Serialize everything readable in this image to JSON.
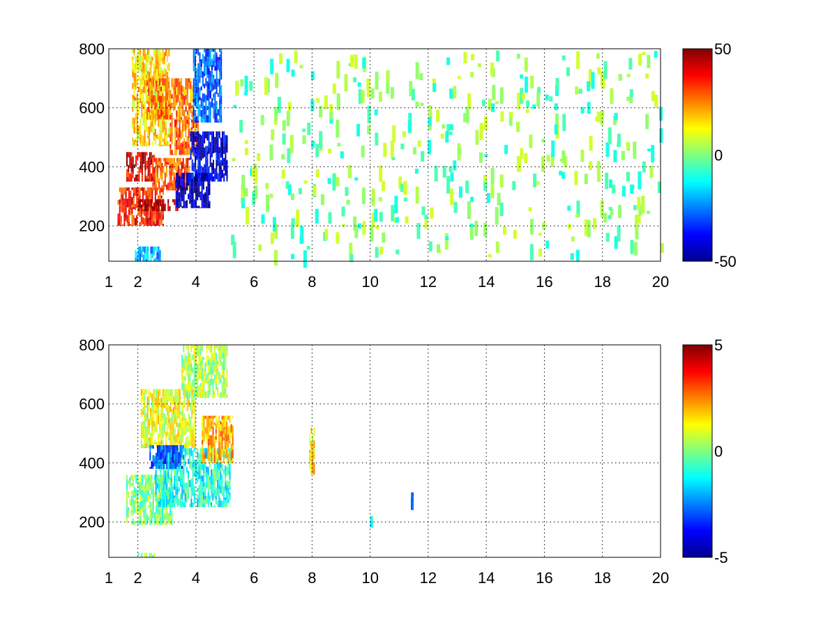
{
  "chart_data": [
    {
      "type": "heatmap",
      "title": "",
      "xlabel": "",
      "ylabel": "",
      "xlim": [
        1,
        20
      ],
      "ylim": [
        80,
        800
      ],
      "xticks": [
        1,
        2,
        4,
        6,
        8,
        10,
        12,
        14,
        16,
        18,
        20
      ],
      "xtick_labels": [
        "1",
        "2",
        "4",
        "6",
        "8",
        "10",
        "12",
        "14",
        "16",
        "18",
        "20"
      ],
      "yticks": [
        200,
        400,
        600,
        800
      ],
      "ytick_labels": [
        "200",
        "400",
        "600",
        "800"
      ],
      "grid": true,
      "colormap": "jet",
      "clim": [
        -50,
        50
      ],
      "colorbar_ticks": [
        -50,
        0,
        50
      ],
      "colorbar_tick_labels": [
        "-50",
        "0",
        "50"
      ],
      "blobs": [
        {
          "x": [
            1.3,
            2.9
          ],
          "y": [
            200,
            330
          ],
          "value": 35
        },
        {
          "x": [
            2.0,
            3.4
          ],
          "y": [
            250,
            290
          ],
          "value": 48
        },
        {
          "x": [
            2.5,
            3.8
          ],
          "y": [
            320,
            430
          ],
          "value": 30
        },
        {
          "x": [
            3.1,
            4.1
          ],
          "y": [
            440,
            560
          ],
          "value": 28
        },
        {
          "x": [
            3.3,
            4.5
          ],
          "y": [
            260,
            380
          ],
          "value": -45
        },
        {
          "x": [
            3.8,
            5.1
          ],
          "y": [
            350,
            520
          ],
          "value": -40
        },
        {
          "x": [
            3.9,
            4.9
          ],
          "y": [
            550,
            800
          ],
          "value": -28
        },
        {
          "x": [
            1.8,
            3.1
          ],
          "y": [
            470,
            800
          ],
          "value": 15
        },
        {
          "x": [
            2.3,
            3.9
          ],
          "y": [
            560,
            700
          ],
          "value": 25
        },
        {
          "x": [
            1.6,
            2.6
          ],
          "y": [
            350,
            450
          ],
          "value": 40
        },
        {
          "x": [
            1.9,
            2.8
          ],
          "y": [
            80,
            130
          ],
          "value": -20
        }
      ],
      "noise_x_range": [
        5.2,
        20
      ],
      "noise_values": [
        -10,
        2,
        5,
        -5,
        8
      ]
    },
    {
      "type": "heatmap",
      "title": "",
      "xlabel": "",
      "ylabel": "",
      "xlim": [
        1,
        20
      ],
      "ylim": [
        80,
        800
      ],
      "xticks": [
        1,
        2,
        4,
        6,
        8,
        10,
        12,
        14,
        16,
        18,
        20
      ],
      "xtick_labels": [
        "1",
        "2",
        "4",
        "6",
        "8",
        "10",
        "12",
        "14",
        "16",
        "18",
        "20"
      ],
      "yticks": [
        200,
        400,
        600,
        800
      ],
      "ytick_labels": [
        "200",
        "400",
        "600",
        "800"
      ],
      "grid": true,
      "colormap": "jet",
      "clim": [
        -5,
        5
      ],
      "colorbar_ticks": [
        -5,
        0,
        5
      ],
      "colorbar_tick_labels": [
        "-5",
        "0",
        "5"
      ],
      "blobs": [
        {
          "x": [
            1.6,
            3.2
          ],
          "y": [
            190,
            360
          ],
          "value": 0
        },
        {
          "x": [
            2.6,
            5.2
          ],
          "y": [
            250,
            450
          ],
          "value": -1
        },
        {
          "x": [
            2.1,
            4.0
          ],
          "y": [
            450,
            650
          ],
          "value": 1
        },
        {
          "x": [
            3.5,
            5.1
          ],
          "y": [
            620,
            800
          ],
          "value": 0.5
        },
        {
          "x": [
            2.4,
            3.6
          ],
          "y": [
            380,
            460
          ],
          "value": -3
        },
        {
          "x": [
            4.2,
            5.3
          ],
          "y": [
            400,
            560
          ],
          "value": 2
        },
        {
          "x": [
            7.9,
            8.1
          ],
          "y": [
            360,
            520
          ],
          "value": 1.5
        },
        {
          "x": [
            10.0,
            10.1
          ],
          "y": [
            180,
            220
          ],
          "value": -1.5
        },
        {
          "x": [
            11.4,
            11.5
          ],
          "y": [
            240,
            300
          ],
          "value": -2
        },
        {
          "x": [
            2.0,
            2.6
          ],
          "y": [
            80,
            95
          ],
          "value": 0
        }
      ]
    }
  ]
}
